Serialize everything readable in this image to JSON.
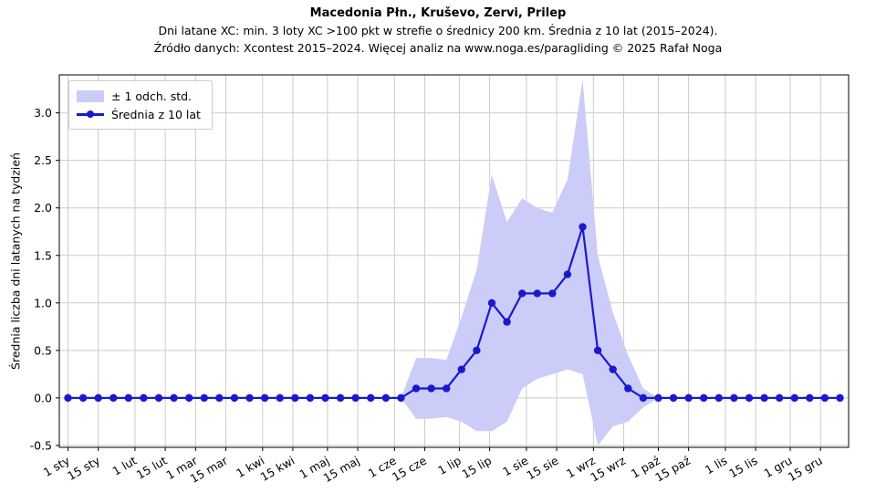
{
  "header": {
    "title": "Macedonia Płn., Kruševo, Zervi, Prilep",
    "subtitle1": "Dni latane XC: min. 3 loty XC >100 pkt w strefie o średnicy 200 km. Średnia z 10 lat (2015–2024).",
    "subtitle2": "Źródło danych: Xcontest 2015–2024. Więcej analiz na www.noga.es/paragliding © 2025 Rafał Noga"
  },
  "legend": {
    "band_label": "± 1 odch. std.",
    "mean_label": "Średnia z 10 lat"
  },
  "colors": {
    "line": "#1a1acd",
    "band": "#ccccf8",
    "grid": "#cccccc",
    "axis": "#000000",
    "text": "#000000"
  },
  "chart_data": {
    "type": "line",
    "title": "Macedonia Płn., Kruševo, Zervi, Prilep",
    "ylabel": "Średnia liczba dni latanych na tydzień",
    "xlabel": "",
    "grid": true,
    "legend_position": "upper-left",
    "ylim": [
      -0.52,
      3.4
    ],
    "xlim_days": [
      -3,
      362
    ],
    "series_name": "Średnia z 10 lat",
    "band_name": "± 1 odch. std.",
    "x_day_of_year": [
      1,
      8,
      15,
      22,
      29,
      36,
      43,
      50,
      57,
      64,
      71,
      78,
      85,
      92,
      99,
      106,
      113,
      120,
      127,
      134,
      141,
      148,
      155,
      162,
      169,
      176,
      183,
      190,
      197,
      204,
      211,
      218,
      225,
      232,
      239,
      246,
      253,
      260,
      267,
      274,
      281,
      288,
      295,
      302,
      309,
      316,
      323,
      330,
      337,
      344,
      351,
      358
    ],
    "mean": [
      0,
      0,
      0,
      0,
      0,
      0,
      0,
      0,
      0,
      0,
      0,
      0,
      0,
      0,
      0,
      0,
      0,
      0,
      0,
      0,
      0,
      0,
      0,
      0.1,
      0.1,
      0.1,
      0.3,
      0.5,
      1.0,
      0.8,
      1.1,
      1.1,
      1.1,
      1.3,
      1.8,
      0.5,
      0.3,
      0.1,
      0,
      0,
      0,
      0,
      0,
      0,
      0,
      0,
      0,
      0,
      0,
      0,
      0,
      0
    ],
    "std": [
      0,
      0,
      0,
      0,
      0,
      0,
      0,
      0,
      0,
      0,
      0,
      0,
      0,
      0,
      0,
      0,
      0,
      0,
      0,
      0,
      0,
      0,
      0,
      0.32,
      0.32,
      0.3,
      0.55,
      0.85,
      1.35,
      1.05,
      1.0,
      0.9,
      0.85,
      1.0,
      1.55,
      1.0,
      0.6,
      0.35,
      0.1,
      0,
      0,
      0,
      0,
      0,
      0,
      0,
      0,
      0,
      0,
      0,
      0,
      0
    ],
    "yticks": [
      {
        "value": -0.5,
        "label": "-0.5"
      },
      {
        "value": 0.0,
        "label": "0.0"
      },
      {
        "value": 0.5,
        "label": "0.5"
      },
      {
        "value": 1.0,
        "label": "1.0"
      },
      {
        "value": 1.5,
        "label": "1.5"
      },
      {
        "value": 2.0,
        "label": "2.0"
      },
      {
        "value": 2.5,
        "label": "2.5"
      },
      {
        "value": 3.0,
        "label": "3.0"
      }
    ],
    "xticks": [
      {
        "day": 1,
        "label": "1 sty"
      },
      {
        "day": 15,
        "label": "15 sty"
      },
      {
        "day": 32,
        "label": "1 lut"
      },
      {
        "day": 46,
        "label": "15 lut"
      },
      {
        "day": 60,
        "label": "1 mar"
      },
      {
        "day": 74,
        "label": "15 mar"
      },
      {
        "day": 91,
        "label": "1 kwi"
      },
      {
        "day": 105,
        "label": "15 kwi"
      },
      {
        "day": 121,
        "label": "1 maj"
      },
      {
        "day": 135,
        "label": "15 maj"
      },
      {
        "day": 152,
        "label": "1 cze"
      },
      {
        "day": 166,
        "label": "15 cze"
      },
      {
        "day": 182,
        "label": "1 lip"
      },
      {
        "day": 196,
        "label": "15 lip"
      },
      {
        "day": 213,
        "label": "1 sie"
      },
      {
        "day": 227,
        "label": "15 sie"
      },
      {
        "day": 244,
        "label": "1 wrz"
      },
      {
        "day": 258,
        "label": "15 wrz"
      },
      {
        "day": 274,
        "label": "1 paź"
      },
      {
        "day": 288,
        "label": "15 paź"
      },
      {
        "day": 305,
        "label": "1 lis"
      },
      {
        "day": 319,
        "label": "15 lis"
      },
      {
        "day": 335,
        "label": "1 gru"
      },
      {
        "day": 349,
        "label": "15 gru"
      }
    ]
  }
}
